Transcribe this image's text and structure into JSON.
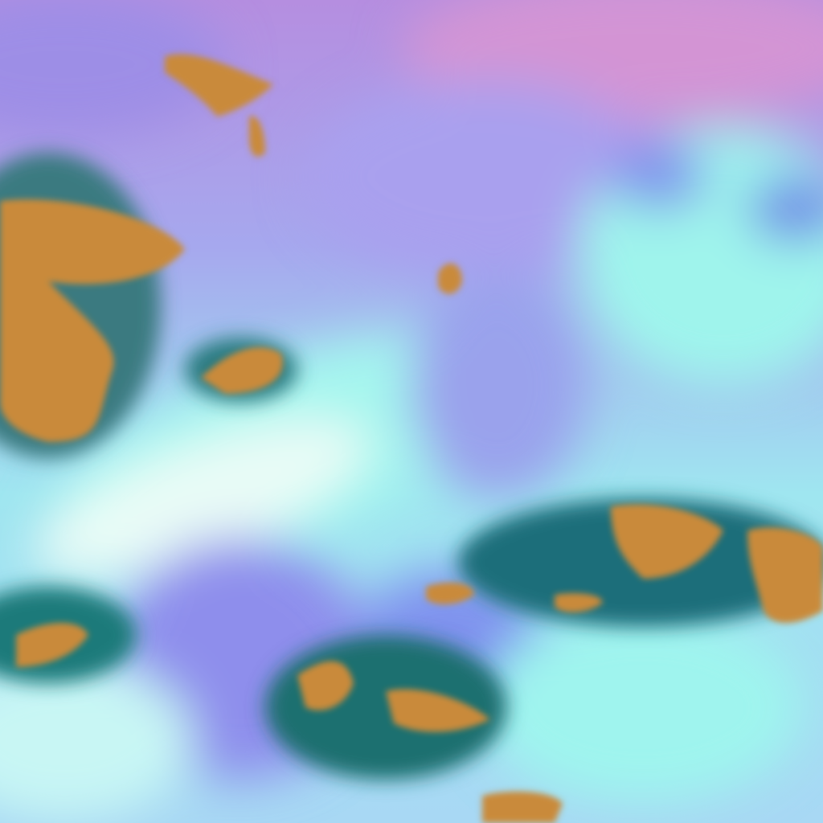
{
  "image": {
    "kind": "false-color satellite cloud imagery",
    "colors": {
      "upper_sky_pink": "#c98fd6",
      "purple_blue": "#8f8ef0",
      "cyan_cloud": "#7ff2e6",
      "white_cloud": "#e6fbf8",
      "land_orange": "#c98a3a",
      "land_edge_teal": "#1f6e7a",
      "deep_blue": "#6a7ee8"
    }
  }
}
